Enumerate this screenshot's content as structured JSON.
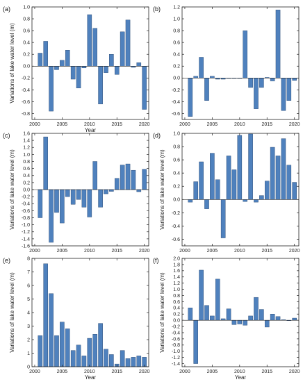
{
  "colors": {
    "bar": "#4f81bd",
    "bar_edge": "#1f3f6a"
  },
  "chart_data": [
    {
      "panel": "(a)",
      "type": "bar",
      "xlabel": "Year",
      "ylabel": "Variations of lake water level (m)",
      "xlim": [
        1999.5,
        2020.8
      ],
      "ylim": [
        -0.9,
        1.0
      ],
      "xticks": [
        2000,
        2005,
        2010,
        2015,
        2020
      ],
      "yticks": [
        -0.8,
        -0.6,
        -0.4,
        -0.2,
        0.0,
        0.2,
        0.4,
        0.6,
        0.8,
        1.0
      ],
      "ytick_labels": [
        "-0.8",
        "-0.6",
        "-0.4",
        "-0.2",
        "0.0",
        "0.2",
        "0.4",
        "0.6",
        "0.8",
        "1.0"
      ],
      "x": [
        2001,
        2002,
        2003,
        2004,
        2005,
        2006,
        2007,
        2008,
        2009,
        2010,
        2011,
        2012,
        2013,
        2014,
        2015,
        2016,
        2017,
        2018,
        2019,
        2020
      ],
      "values": [
        0.22,
        0.42,
        -0.76,
        -0.06,
        0.1,
        0.27,
        -0.22,
        -0.37,
        -0.03,
        0.87,
        0.64,
        -0.64,
        -0.11,
        0.2,
        -0.14,
        0.58,
        0.78,
        -0.02,
        0.06,
        -0.73
      ]
    },
    {
      "panel": "(b)",
      "type": "bar",
      "xlabel": "",
      "ylabel": "",
      "xlim": [
        1999.5,
        2020.8
      ],
      "ylim": [
        -0.7,
        1.2
      ],
      "xticks": [
        2000,
        2005,
        2010,
        2015,
        2020
      ],
      "yticks": [
        -0.6,
        -0.4,
        -0.2,
        0.0,
        0.2,
        0.4,
        0.6,
        0.8,
        1.0,
        1.2
      ],
      "ytick_labels": [
        "-0.6",
        "-0.4",
        "-0.2",
        "0.0",
        "0.2",
        "0.4",
        "0.6",
        "0.8",
        "1.0",
        "1.2"
      ],
      "x": [
        2001,
        2002,
        2003,
        2004,
        2005,
        2006,
        2007,
        2008,
        2009,
        2010,
        2011,
        2012,
        2013,
        2014,
        2015,
        2016,
        2017,
        2018,
        2019,
        2020
      ],
      "values": [
        -0.65,
        0.03,
        0.35,
        -0.38,
        0.03,
        -0.02,
        -0.02,
        0.0,
        0.0,
        0.0,
        0.8,
        -0.16,
        -0.52,
        -0.16,
        0.01,
        -0.05,
        1.15,
        -0.55,
        -0.38,
        -0.04
      ]
    },
    {
      "panel": "(c)",
      "type": "bar",
      "xlabel": "",
      "ylabel": "Variations of lake water level (m)",
      "xlim": [
        1999.5,
        2020.8
      ],
      "ylim": [
        -1.6,
        1.6
      ],
      "xticks": [
        2000,
        2005,
        2010,
        2015,
        2020
      ],
      "yticks": [
        -1.6,
        -1.4,
        -1.2,
        -1.0,
        -0.8,
        -0.6,
        -0.4,
        -0.2,
        0.0,
        0.2,
        0.4,
        0.6,
        0.8,
        1.0,
        1.2,
        1.4,
        1.6
      ],
      "ytick_labels": [
        "-1.6",
        "-1.4",
        "-1.2",
        "-1.0",
        "-0.8",
        "-0.6",
        "-0.4",
        "-0.2",
        "0.0",
        "0.2",
        "0.4",
        "0.6",
        "0.8",
        "1.0",
        "1.2",
        "1.4",
        "1.6"
      ],
      "x": [
        2001,
        2002,
        2003,
        2004,
        2005,
        2006,
        2007,
        2008,
        2009,
        2010,
        2011,
        2012,
        2013,
        2014,
        2015,
        2016,
        2017,
        2018,
        2019,
        2020
      ],
      "values": [
        -0.8,
        1.5,
        -1.5,
        -0.65,
        -0.95,
        -0.2,
        -0.42,
        -0.28,
        -0.5,
        -0.78,
        0.8,
        -0.5,
        -0.12,
        -0.05,
        0.32,
        0.7,
        0.73,
        0.55,
        -0.06,
        0.58
      ]
    },
    {
      "panel": "(d)",
      "type": "bar",
      "xlabel": "",
      "ylabel": "Variations of lake water level (m)",
      "xlim": [
        1999.5,
        2020.8
      ],
      "ylim": [
        -0.7,
        1.0
      ],
      "xticks": [
        2000,
        2005,
        2010,
        2015,
        2020
      ],
      "yticks": [
        -0.6,
        -0.4,
        -0.2,
        0.0,
        0.2,
        0.4,
        0.6,
        0.8,
        1.0
      ],
      "ytick_labels": [
        "-0.6",
        "-0.4",
        "-0.2",
        "0.0",
        "0.2",
        "0.4",
        "0.6",
        "0.8",
        "1.0"
      ],
      "x": [
        2001,
        2002,
        2003,
        2004,
        2005,
        2006,
        2007,
        2008,
        2009,
        2010,
        2011,
        2012,
        2013,
        2014,
        2015,
        2016,
        2017,
        2018,
        2019,
        2020
      ],
      "values": [
        -0.04,
        0.27,
        0.57,
        -0.14,
        0.7,
        0.3,
        -0.58,
        0.66,
        0.45,
        0.97,
        -0.03,
        0.99,
        -0.04,
        0.06,
        0.28,
        0.79,
        0.66,
        0.92,
        0.52,
        0.26
      ]
    },
    {
      "panel": "(e)",
      "type": "bar",
      "xlabel": "Year",
      "ylabel": "Variations of lake water level (m)",
      "xlim": [
        1999.5,
        2020.8
      ],
      "ylim": [
        0,
        8
      ],
      "xticks": [
        2000,
        2005,
        2010,
        2015,
        2020
      ],
      "yticks": [
        0,
        1,
        2,
        3,
        4,
        5,
        6,
        7,
        8
      ],
      "ytick_labels": [
        "0",
        "1",
        "2",
        "3",
        "4",
        "5",
        "6",
        "7",
        "8"
      ],
      "x": [
        2001,
        2002,
        2003,
        2004,
        2005,
        2006,
        2007,
        2008,
        2009,
        2010,
        2011,
        2012,
        2013,
        2014,
        2015,
        2016,
        2017,
        2018,
        2019,
        2020
      ],
      "values": [
        2.3,
        7.6,
        5.4,
        2.3,
        3.3,
        2.8,
        1.2,
        1.6,
        0.8,
        2.1,
        2.4,
        3.2,
        1.3,
        0.9,
        0.2,
        1.2,
        0.6,
        0.7,
        0.8,
        0.7
      ]
    },
    {
      "panel": "(f)",
      "type": "bar",
      "xlabel": "Year",
      "ylabel": "Variations of lake water level (m)",
      "xlim": [
        1999.5,
        2020.8
      ],
      "ylim": [
        -1.5,
        2.0
      ],
      "xticks": [
        2000,
        2005,
        2010,
        2015,
        2020
      ],
      "yticks": [
        -1.4,
        -1.2,
        -1.0,
        -0.8,
        -0.6,
        -0.4,
        -0.2,
        0.0,
        0.2,
        0.4,
        0.6,
        0.8,
        1.0,
        1.2,
        1.4,
        1.6,
        1.8,
        2.0
      ],
      "ytick_labels": [
        "-1.4",
        "-1.2",
        "-1.0",
        "-0.8",
        "-0.6",
        "-0.4",
        "-0.2",
        "0.0",
        "0.2",
        "0.4",
        "0.6",
        "0.8",
        "1.0",
        "1.2",
        "1.4",
        "1.6",
        "1.8",
        "2.0"
      ],
      "x": [
        2001,
        2002,
        2003,
        2004,
        2005,
        2006,
        2007,
        2008,
        2009,
        2010,
        2011,
        2012,
        2013,
        2014,
        2015,
        2016,
        2017,
        2018,
        2019,
        2020
      ],
      "values": [
        0.4,
        -1.4,
        1.62,
        0.48,
        0.14,
        1.33,
        0.05,
        0.37,
        -0.14,
        -0.12,
        -0.16,
        0.14,
        0.74,
        0.35,
        -0.22,
        0.2,
        0.12,
        0.02,
        0.0,
        0.07
      ]
    }
  ]
}
